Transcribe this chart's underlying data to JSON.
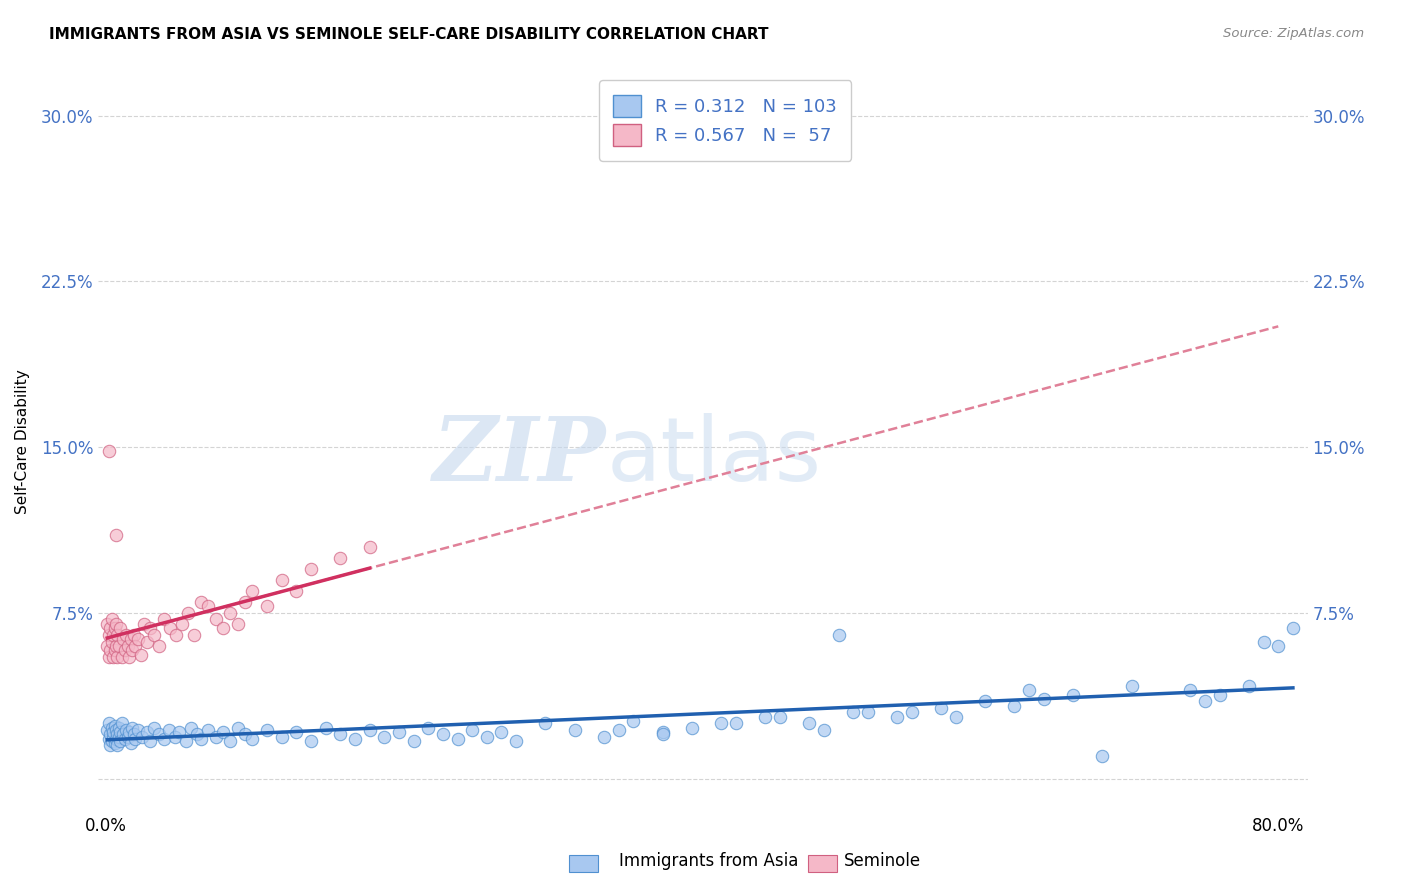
{
  "title": "IMMIGRANTS FROM ASIA VS SEMINOLE SELF-CARE DISABILITY CORRELATION CHART",
  "source": "Source: ZipAtlas.com",
  "ylabel": "Self-Care Disability",
  "legend_label1": "Immigrants from Asia",
  "legend_label2": "Seminole",
  "R1": 0.312,
  "N1": 103,
  "R2": 0.567,
  "N2": 57,
  "xlim": [
    -0.005,
    0.82
  ],
  "ylim": [
    -0.015,
    0.32
  ],
  "yticks": [
    0.0,
    0.075,
    0.15,
    0.225,
    0.3
  ],
  "ytick_labels": [
    "",
    "7.5%",
    "15.0%",
    "22.5%",
    "30.0%"
  ],
  "xticks": [
    0.0,
    0.2,
    0.4,
    0.6,
    0.8
  ],
  "xtick_labels": [
    "0.0%",
    "",
    "",
    "",
    "80.0%"
  ],
  "color_blue": "#A8C8F0",
  "color_pink": "#F5B8C8",
  "edge_blue": "#5090D0",
  "edge_pink": "#D06080",
  "trendline_blue": "#2060B0",
  "trendline_pink": "#D03060",
  "trendline_dashed_color": "#E08098",
  "tick_color": "#4472C4",
  "background_color": "#FFFFFF",
  "blue_x": [
    0.001,
    0.002,
    0.002,
    0.003,
    0.003,
    0.004,
    0.004,
    0.005,
    0.005,
    0.006,
    0.006,
    0.007,
    0.007,
    0.008,
    0.008,
    0.009,
    0.009,
    0.01,
    0.01,
    0.011,
    0.012,
    0.013,
    0.014,
    0.015,
    0.016,
    0.017,
    0.018,
    0.019,
    0.02,
    0.022,
    0.025,
    0.028,
    0.03,
    0.033,
    0.036,
    0.04,
    0.043,
    0.047,
    0.05,
    0.055,
    0.058,
    0.062,
    0.065,
    0.07,
    0.075,
    0.08,
    0.085,
    0.09,
    0.095,
    0.1,
    0.11,
    0.12,
    0.13,
    0.14,
    0.15,
    0.16,
    0.17,
    0.18,
    0.19,
    0.2,
    0.21,
    0.22,
    0.23,
    0.24,
    0.25,
    0.26,
    0.27,
    0.28,
    0.3,
    0.32,
    0.34,
    0.36,
    0.38,
    0.4,
    0.42,
    0.45,
    0.48,
    0.51,
    0.54,
    0.57,
    0.5,
    0.6,
    0.63,
    0.66,
    0.7,
    0.74,
    0.76,
    0.78,
    0.8,
    0.68,
    0.62,
    0.64,
    0.55,
    0.58,
    0.43,
    0.46,
    0.49,
    0.52,
    0.38,
    0.35,
    0.75,
    0.79,
    0.81
  ],
  "blue_y": [
    0.022,
    0.018,
    0.025,
    0.015,
    0.02,
    0.017,
    0.023,
    0.019,
    0.021,
    0.016,
    0.024,
    0.018,
    0.022,
    0.02,
    0.015,
    0.023,
    0.019,
    0.021,
    0.017,
    0.025,
    0.02,
    0.018,
    0.022,
    0.019,
    0.021,
    0.016,
    0.023,
    0.02,
    0.018,
    0.022,
    0.019,
    0.021,
    0.017,
    0.023,
    0.02,
    0.018,
    0.022,
    0.019,
    0.021,
    0.017,
    0.023,
    0.02,
    0.018,
    0.022,
    0.019,
    0.021,
    0.017,
    0.023,
    0.02,
    0.018,
    0.022,
    0.019,
    0.021,
    0.017,
    0.023,
    0.02,
    0.018,
    0.022,
    0.019,
    0.021,
    0.017,
    0.023,
    0.02,
    0.018,
    0.022,
    0.019,
    0.021,
    0.017,
    0.025,
    0.022,
    0.019,
    0.026,
    0.021,
    0.023,
    0.025,
    0.028,
    0.025,
    0.03,
    0.028,
    0.032,
    0.065,
    0.035,
    0.04,
    0.038,
    0.042,
    0.04,
    0.038,
    0.042,
    0.06,
    0.01,
    0.033,
    0.036,
    0.03,
    0.028,
    0.025,
    0.028,
    0.022,
    0.03,
    0.02,
    0.022,
    0.035,
    0.062,
    0.068
  ],
  "pink_x": [
    0.001,
    0.001,
    0.002,
    0.002,
    0.003,
    0.003,
    0.004,
    0.004,
    0.005,
    0.005,
    0.006,
    0.006,
    0.007,
    0.007,
    0.008,
    0.008,
    0.009,
    0.01,
    0.011,
    0.012,
    0.013,
    0.014,
    0.015,
    0.016,
    0.017,
    0.018,
    0.019,
    0.02,
    0.022,
    0.024,
    0.026,
    0.028,
    0.03,
    0.033,
    0.036,
    0.04,
    0.044,
    0.048,
    0.052,
    0.056,
    0.06,
    0.065,
    0.07,
    0.075,
    0.08,
    0.085,
    0.09,
    0.095,
    0.1,
    0.11,
    0.12,
    0.13,
    0.14,
    0.16,
    0.18,
    0.002,
    0.007
  ],
  "pink_y": [
    0.06,
    0.07,
    0.055,
    0.065,
    0.058,
    0.068,
    0.062,
    0.072,
    0.055,
    0.065,
    0.058,
    0.068,
    0.06,
    0.07,
    0.055,
    0.065,
    0.06,
    0.068,
    0.055,
    0.063,
    0.058,
    0.065,
    0.06,
    0.055,
    0.063,
    0.058,
    0.065,
    0.06,
    0.063,
    0.056,
    0.07,
    0.062,
    0.068,
    0.065,
    0.06,
    0.072,
    0.068,
    0.065,
    0.07,
    0.075,
    0.065,
    0.08,
    0.078,
    0.072,
    0.068,
    0.075,
    0.07,
    0.08,
    0.085,
    0.078,
    0.09,
    0.085,
    0.095,
    0.1,
    0.105,
    0.148,
    0.11
  ]
}
